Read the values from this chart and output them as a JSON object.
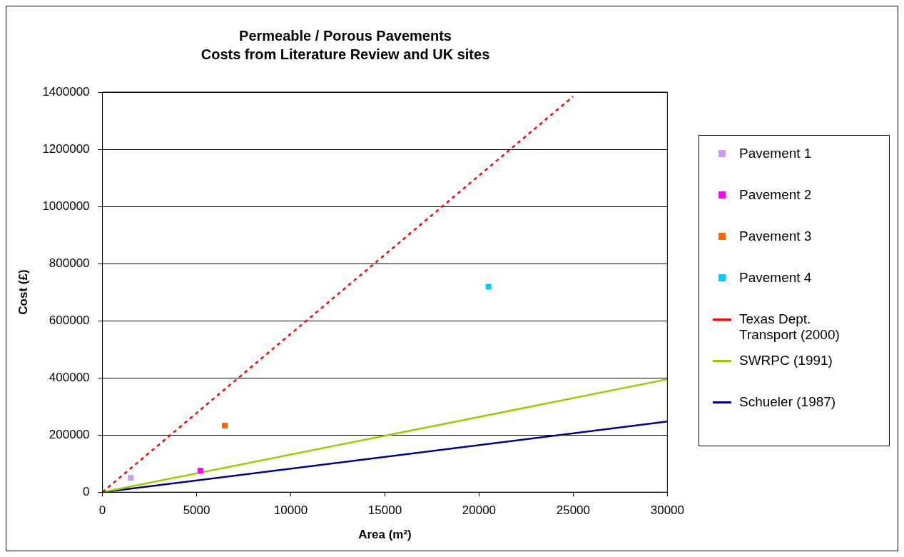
{
  "chart_data": {
    "type": "scatter",
    "title": "Permeable / Porous Pavements",
    "subtitle": "Costs from Literature Review and UK sites",
    "xlabel": "Area (m²)",
    "ylabel": "Cost (£)",
    "xlim": [
      0,
      30000
    ],
    "xticks": [
      0,
      5000,
      10000,
      15000,
      20000,
      25000,
      30000
    ],
    "ylim": [
      0,
      1400000
    ],
    "yticks": [
      0,
      200000,
      400000,
      600000,
      800000,
      1000000,
      1200000,
      1400000
    ],
    "grid": "y",
    "legend": "right",
    "marker": "square",
    "series": [
      {
        "name": "Pavement 1",
        "type": "scatter",
        "color": "#cc99ff",
        "x": [
          1500
        ],
        "values": [
          50000
        ]
      },
      {
        "name": "Pavement 2",
        "type": "scatter",
        "color": "#ff00ff",
        "x": [
          5200
        ],
        "values": [
          75000
        ]
      },
      {
        "name": "Pavement 3",
        "type": "scatter",
        "color": "#ff6600",
        "x": [
          6500
        ],
        "values": [
          233000
        ]
      },
      {
        "name": "Pavement 4",
        "type": "scatter",
        "color": "#00ccff",
        "x": [
          20500
        ],
        "values": [
          719000
        ]
      },
      {
        "name": "Texas Dept. Transport (2000)",
        "type": "line",
        "color": "#ff0000",
        "marker": "none",
        "line_style": "dashed",
        "x": [
          0,
          25000
        ],
        "values": [
          0,
          1385000
        ]
      },
      {
        "name": "SWRPC (1991)",
        "type": "line",
        "color": "#99cc00",
        "marker": "none",
        "x": [
          0,
          30000
        ],
        "values": [
          0,
          395000
        ]
      },
      {
        "name": "Schueler (1987)",
        "type": "line",
        "color": "#000080",
        "marker": "none",
        "x": [
          0,
          30000
        ],
        "values": [
          0,
          247000
        ]
      }
    ]
  }
}
